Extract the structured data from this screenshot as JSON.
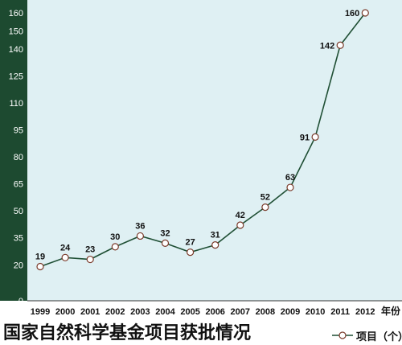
{
  "chart_data": {
    "type": "line",
    "title": "国家自然科学基金项目获批情况",
    "xlabel": "年份",
    "ylabel": "",
    "x": [
      "1999",
      "2000",
      "2001",
      "2002",
      "2003",
      "2004",
      "2005",
      "2006",
      "2007",
      "2008",
      "2009",
      "2010",
      "2011",
      "2012"
    ],
    "series": [
      {
        "name": "项目（个）",
        "values": [
          19,
          24,
          23,
          30,
          36,
          32,
          27,
          31,
          42,
          52,
          63,
          91,
          142,
          160
        ]
      }
    ],
    "yticks": [
      0,
      20,
      35,
      50,
      65,
      80,
      95,
      110,
      125,
      140,
      150,
      160
    ],
    "ylim": [
      0,
      160
    ],
    "grid": false,
    "legend_position": "bottom-right",
    "colors": {
      "plot_bg": "#dff0f3",
      "axis_band": "#1d4a30",
      "line": "#1f4f34",
      "marker_fill": "#ffffff"
    }
  }
}
